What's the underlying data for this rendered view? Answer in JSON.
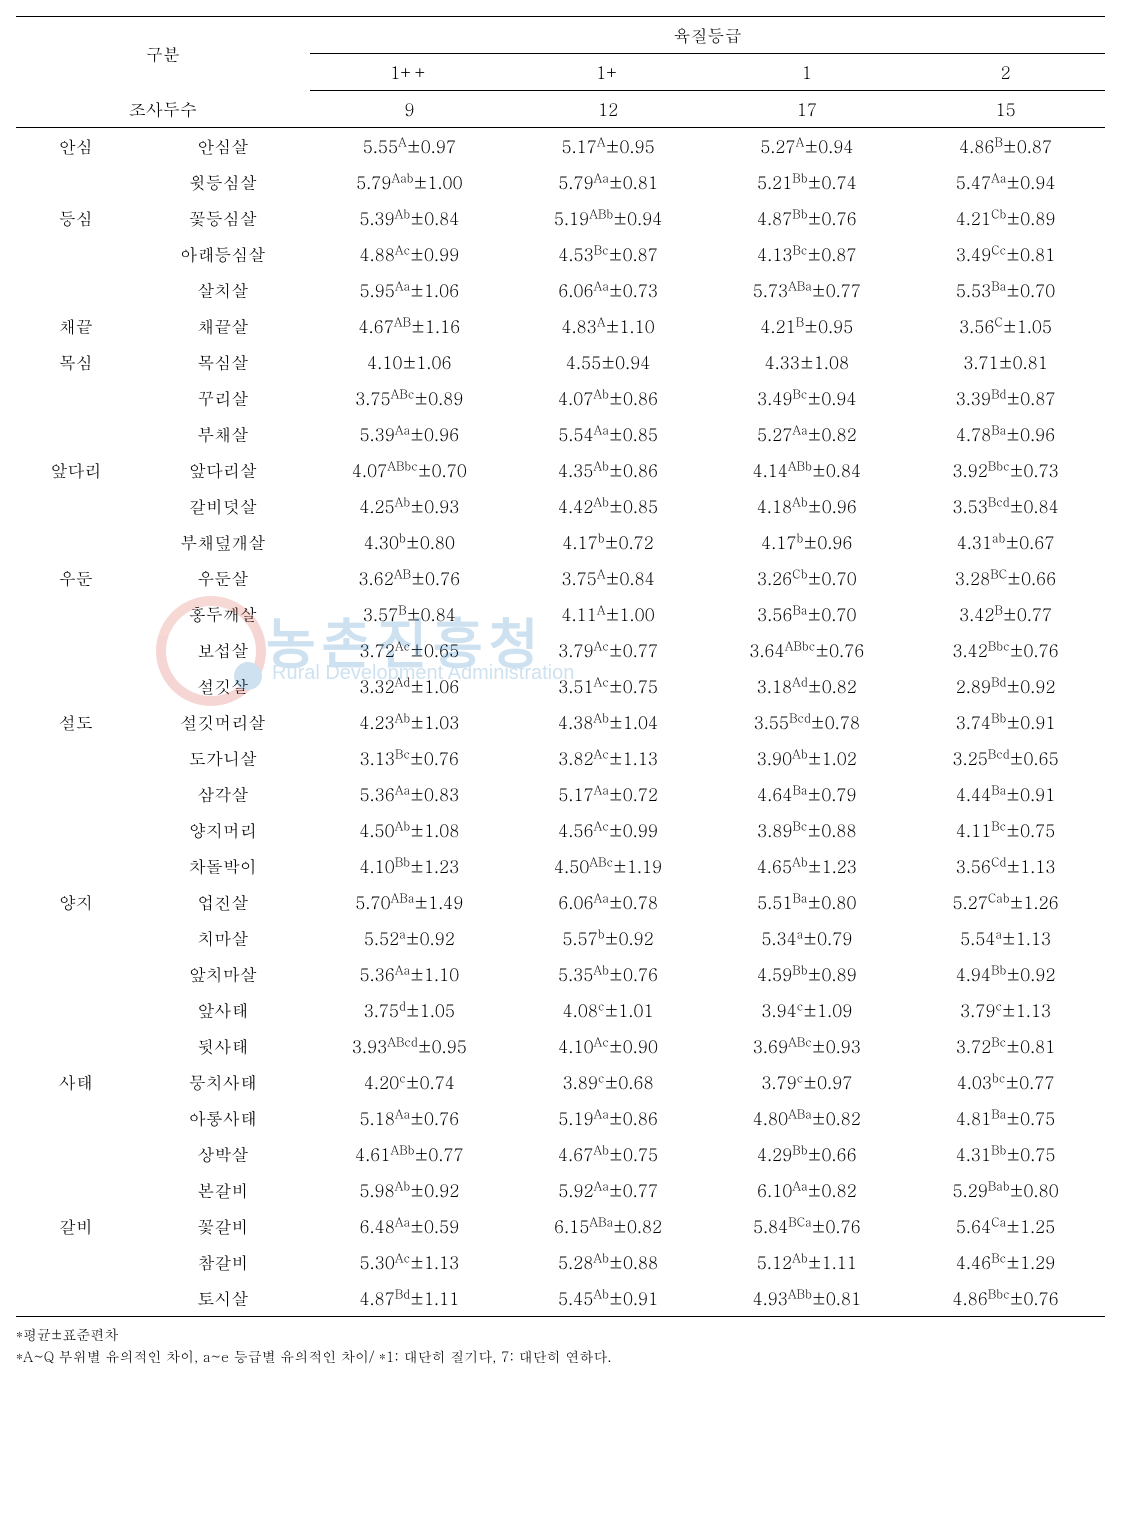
{
  "header": {
    "category_label": "구분",
    "grade_group_label": "육질등급",
    "grades": [
      "1++",
      "1+",
      "1",
      "2"
    ],
    "survey_label": "조사두수",
    "survey_counts": [
      "9",
      "12",
      "17",
      "15"
    ]
  },
  "table_style": {
    "font_size_pt": 13,
    "border_color": "#000000",
    "background_color": "#ffffff",
    "text_color": "#000000",
    "sup_font_scale": 0.7,
    "col_widths_pct": [
      11,
      16,
      18.25,
      18.25,
      18.25,
      18.25
    ]
  },
  "groups": [
    {
      "name": "안심",
      "rows": [
        {
          "sub": "안심살",
          "v": [
            {
              "m": "5.55",
              "s": "A",
              "sd": "0.97"
            },
            {
              "m": "5.17",
              "s": "A",
              "sd": "0.95"
            },
            {
              "m": "5.27",
              "s": "A",
              "sd": "0.94"
            },
            {
              "m": "4.86",
              "s": "B",
              "sd": "0.87"
            }
          ]
        }
      ]
    },
    {
      "name": "등심",
      "rows": [
        {
          "sub": "윗등심살",
          "v": [
            {
              "m": "5.79",
              "s": "Aab",
              "sd": "1.00"
            },
            {
              "m": "5.79",
              "s": "Aa",
              "sd": "0.81"
            },
            {
              "m": "5.21",
              "s": "Bb",
              "sd": "0.74"
            },
            {
              "m": "5.47",
              "s": "Aa",
              "sd": "0.94"
            }
          ]
        },
        {
          "sub": "꽃등심살",
          "v": [
            {
              "m": "5.39",
              "s": "Ab",
              "sd": "0.84"
            },
            {
              "m": "5.19",
              "s": "ABb",
              "sd": "0.94"
            },
            {
              "m": "4.87",
              "s": "Bb",
              "sd": "0.76"
            },
            {
              "m": "4.21",
              "s": "Cb",
              "sd": "0.89"
            }
          ]
        },
        {
          "sub": "아래등심살",
          "v": [
            {
              "m": "4.88",
              "s": "Ac",
              "sd": "0.99"
            },
            {
              "m": "4.53",
              "s": "Bc",
              "sd": "0.87"
            },
            {
              "m": "4.13",
              "s": "Bc",
              "sd": "0.87"
            },
            {
              "m": "3.49",
              "s": "Cc",
              "sd": "0.81"
            }
          ]
        },
        {
          "sub": "살치살",
          "v": [
            {
              "m": "5.95",
              "s": "Aa",
              "sd": "1.06"
            },
            {
              "m": "6.06",
              "s": "Aa",
              "sd": "0.73"
            },
            {
              "m": "5.73",
              "s": "ABa",
              "sd": "0.77"
            },
            {
              "m": "5.53",
              "s": "Ba",
              "sd": "0.70"
            }
          ]
        }
      ]
    },
    {
      "name": "채끝",
      "rows": [
        {
          "sub": "채끝살",
          "v": [
            {
              "m": "4.67",
              "s": "AB",
              "sd": "1.16"
            },
            {
              "m": "4.83",
              "s": "A",
              "sd": "1.10"
            },
            {
              "m": "4.21",
              "s": "B",
              "sd": "0.95"
            },
            {
              "m": "3.56",
              "s": "C",
              "sd": "1.05"
            }
          ]
        }
      ]
    },
    {
      "name": "목심",
      "rows": [
        {
          "sub": "목심살",
          "v": [
            {
              "m": "4.10",
              "s": "",
              "sd": "1.06"
            },
            {
              "m": "4.55",
              "s": "",
              "sd": "0.94"
            },
            {
              "m": "4.33",
              "s": "",
              "sd": "1.08"
            },
            {
              "m": "3.71",
              "s": "",
              "sd": "0.81"
            }
          ]
        }
      ]
    },
    {
      "name": "앞다리",
      "rows": [
        {
          "sub": "꾸리살",
          "v": [
            {
              "m": "3.75",
              "s": "ABc",
              "sd": "0.89"
            },
            {
              "m": "4.07",
              "s": "Ab",
              "sd": "0.86"
            },
            {
              "m": "3.49",
              "s": "Bc",
              "sd": "0.94"
            },
            {
              "m": "3.39",
              "s": "Bd",
              "sd": "0.87"
            }
          ]
        },
        {
          "sub": "부채살",
          "v": [
            {
              "m": "5.39",
              "s": "Aa",
              "sd": "0.96"
            },
            {
              "m": "5.54",
              "s": "Aa",
              "sd": "0.85"
            },
            {
              "m": "5.27",
              "s": "Aa",
              "sd": "0.82"
            },
            {
              "m": "4.78",
              "s": "Ba",
              "sd": "0.96"
            }
          ]
        },
        {
          "sub": "앞다리살",
          "v": [
            {
              "m": "4.07",
              "s": "ABbc",
              "sd": "0.70"
            },
            {
              "m": "4.35",
              "s": "Ab",
              "sd": "0.86"
            },
            {
              "m": "4.14",
              "s": "ABb",
              "sd": "0.84"
            },
            {
              "m": "3.92",
              "s": "Bbc",
              "sd": "0.73"
            }
          ]
        },
        {
          "sub": "갈비덧살",
          "v": [
            {
              "m": "4.25",
              "s": "Ab",
              "sd": "0.93"
            },
            {
              "m": "4.42",
              "s": "Ab",
              "sd": "0.85"
            },
            {
              "m": "4.18",
              "s": "Ab",
              "sd": "0.96"
            },
            {
              "m": "3.53",
              "s": "Bcd",
              "sd": "0.84"
            }
          ]
        },
        {
          "sub": "부채덮개살",
          "v": [
            {
              "m": "4.30",
              "s": "b",
              "sd": "0.80"
            },
            {
              "m": "4.17",
              "s": "b",
              "sd": "0.72"
            },
            {
              "m": "4.17",
              "s": "b",
              "sd": "0.96"
            },
            {
              "m": "4.31",
              "s": "ab",
              "sd": "0.67"
            }
          ]
        }
      ]
    },
    {
      "name": "우둔",
      "rows": [
        {
          "sub": "우둔살",
          "v": [
            {
              "m": "3.62",
              "s": "AB",
              "sd": "0.76"
            },
            {
              "m": "3.75",
              "s": "A",
              "sd": "0.84"
            },
            {
              "m": "3.26",
              "s": "Cb",
              "sd": "0.70"
            },
            {
              "m": "3.28",
              "s": "BC",
              "sd": "0.66"
            }
          ]
        },
        {
          "sub": "홍두깨살",
          "v": [
            {
              "m": "3.57",
              "s": "B",
              "sd": "0.84"
            },
            {
              "m": "4.11",
              "s": "A",
              "sd": "1.00"
            },
            {
              "m": "3.56",
              "s": "Ba",
              "sd": "0.70"
            },
            {
              "m": "3.42",
              "s": "B",
              "sd": "0.77"
            }
          ]
        }
      ]
    },
    {
      "name": "설도",
      "rows": [
        {
          "sub": "보섭살",
          "v": [
            {
              "m": "3.72",
              "s": "Ac",
              "sd": "0.65"
            },
            {
              "m": "3.79",
              "s": "Ac",
              "sd": "0.77"
            },
            {
              "m": "3.64",
              "s": "ABbc",
              "sd": "0.76"
            },
            {
              "m": "3.42",
              "s": "Bbc",
              "sd": "0.76"
            }
          ]
        },
        {
          "sub": "설깃살",
          "v": [
            {
              "m": "3.32",
              "s": "Ad",
              "sd": "1.06"
            },
            {
              "m": "3.51",
              "s": "Ac",
              "sd": "0.75"
            },
            {
              "m": "3.18",
              "s": "Ad",
              "sd": "0.82"
            },
            {
              "m": "2.89",
              "s": "Bd",
              "sd": "0.92"
            }
          ]
        },
        {
          "sub": "설깃머리살",
          "v": [
            {
              "m": "4.23",
              "s": "Ab",
              "sd": "1.03"
            },
            {
              "m": "4.38",
              "s": "Ab",
              "sd": "1.04"
            },
            {
              "m": "3.55",
              "s": "Bcd",
              "sd": "0.78"
            },
            {
              "m": "3.74",
              "s": "Bb",
              "sd": "0.91"
            }
          ]
        },
        {
          "sub": "도가니살",
          "v": [
            {
              "m": "3.13",
              "s": "Bc",
              "sd": "0.76"
            },
            {
              "m": "3.82",
              "s": "Ac",
              "sd": "1.13"
            },
            {
              "m": "3.90",
              "s": "Ab",
              "sd": "1.02"
            },
            {
              "m": "3.25",
              "s": "Bcd",
              "sd": "0.65"
            }
          ]
        },
        {
          "sub": "삼각살",
          "v": [
            {
              "m": "5.36",
              "s": "Aa",
              "sd": "0.83"
            },
            {
              "m": "5.17",
              "s": "Aa",
              "sd": "0.72"
            },
            {
              "m": "4.64",
              "s": "Ba",
              "sd": "0.79"
            },
            {
              "m": "4.44",
              "s": "Ba",
              "sd": "0.91"
            }
          ]
        }
      ]
    },
    {
      "name": "양지",
      "rows": [
        {
          "sub": "양지머리",
          "v": [
            {
              "m": "4.50",
              "s": "Ab",
              "sd": "1.08"
            },
            {
              "m": "4.56",
              "s": "Ac",
              "sd": "0.99"
            },
            {
              "m": "3.89",
              "s": "Bc",
              "sd": "0.88"
            },
            {
              "m": "4.11",
              "s": "Bc",
              "sd": "0.75"
            }
          ]
        },
        {
          "sub": "차돌박이",
          "v": [
            {
              "m": "4.10",
              "s": "Bb",
              "sd": "1.23"
            },
            {
              "m": "4.50",
              "s": "ABc",
              "sd": "1.19"
            },
            {
              "m": "4.65",
              "s": "Ab",
              "sd": "1.23"
            },
            {
              "m": "3.56",
              "s": "Cd",
              "sd": "1.13"
            }
          ]
        },
        {
          "sub": "업진살",
          "v": [
            {
              "m": "5.70",
              "s": "ABa",
              "sd": "1.49"
            },
            {
              "m": "6.06",
              "s": "Aa",
              "sd": "0.78"
            },
            {
              "m": "5.51",
              "s": "Ba",
              "sd": "0.80"
            },
            {
              "m": "5.27",
              "s": "Cab",
              "sd": "1.26"
            }
          ]
        },
        {
          "sub": "치마살",
          "v": [
            {
              "m": "5.52",
              "s": "a",
              "sd": "0.92"
            },
            {
              "m": "5.57",
              "s": "b",
              "sd": "0.92"
            },
            {
              "m": "5.34",
              "s": "a",
              "sd": "0.79"
            },
            {
              "m": "5.54",
              "s": "a",
              "sd": "1.13"
            }
          ]
        },
        {
          "sub": "앞치마살",
          "v": [
            {
              "m": "5.36",
              "s": "Aa",
              "sd": "1.10"
            },
            {
              "m": "5.35",
              "s": "Ab",
              "sd": "0.76"
            },
            {
              "m": "4.59",
              "s": "Bb",
              "sd": "0.89"
            },
            {
              "m": "4.94",
              "s": "Bb",
              "sd": "0.92"
            }
          ]
        }
      ]
    },
    {
      "name": "사태",
      "rows": [
        {
          "sub": "앞사태",
          "v": [
            {
              "m": "3.75",
              "s": "d",
              "sd": "1.05"
            },
            {
              "m": "4.08",
              "s": "c",
              "sd": "1.01"
            },
            {
              "m": "3.94",
              "s": "c",
              "sd": "1.09"
            },
            {
              "m": "3.79",
              "s": "c",
              "sd": "1.13"
            }
          ]
        },
        {
          "sub": "뒷사태",
          "v": [
            {
              "m": "3.93",
              "s": "ABcd",
              "sd": "0.95"
            },
            {
              "m": "4.10",
              "s": "Ac",
              "sd": "0.90"
            },
            {
              "m": "3.69",
              "s": "ABc",
              "sd": "0.93"
            },
            {
              "m": "3.72",
              "s": "Bc",
              "sd": "0.81"
            }
          ]
        },
        {
          "sub": "뭉치사태",
          "v": [
            {
              "m": "4.20",
              "s": "c",
              "sd": "0.74"
            },
            {
              "m": "3.89",
              "s": "c",
              "sd": "0.68"
            },
            {
              "m": "3.79",
              "s": "c",
              "sd": "0.97"
            },
            {
              "m": "4.03",
              "s": "bc",
              "sd": "0.77"
            }
          ]
        },
        {
          "sub": "아롱사태",
          "v": [
            {
              "m": "5.18",
              "s": "Aa",
              "sd": "0.76"
            },
            {
              "m": "5.19",
              "s": "Aa",
              "sd": "0.86"
            },
            {
              "m": "4.80",
              "s": "ABa",
              "sd": "0.82"
            },
            {
              "m": "4.81",
              "s": "Ba",
              "sd": "0.75"
            }
          ]
        },
        {
          "sub": "상박살",
          "v": [
            {
              "m": "4.61",
              "s": "ABb",
              "sd": "0.77"
            },
            {
              "m": "4.67",
              "s": "Ab",
              "sd": "0.75"
            },
            {
              "m": "4.29",
              "s": "Bb",
              "sd": "0.66"
            },
            {
              "m": "4.31",
              "s": "Bb",
              "sd": "0.75"
            }
          ]
        }
      ]
    },
    {
      "name": "갈비",
      "rows": [
        {
          "sub": "본갈비",
          "v": [
            {
              "m": "5.98",
              "s": "Ab",
              "sd": "0.92"
            },
            {
              "m": "5.92",
              "s": "Aa",
              "sd": "0.77"
            },
            {
              "m": "6.10",
              "s": "Aa",
              "sd": "0.82"
            },
            {
              "m": "5.29",
              "s": "Bab",
              "sd": "0.80"
            }
          ]
        },
        {
          "sub": "꽃갈비",
          "v": [
            {
              "m": "6.48",
              "s": "Aa",
              "sd": "0.59"
            },
            {
              "m": "6.15",
              "s": "ABa",
              "sd": "0.82"
            },
            {
              "m": "5.84",
              "s": "BCa",
              "sd": "0.76"
            },
            {
              "m": "5.64",
              "s": "Ca",
              "sd": "1.25"
            }
          ]
        },
        {
          "sub": "참갈비",
          "v": [
            {
              "m": "5.30",
              "s": "Ac",
              "sd": "1.13"
            },
            {
              "m": "5.28",
              "s": "Ab",
              "sd": "0.88"
            },
            {
              "m": "5.12",
              "s": "Ab",
              "sd": "1.11"
            },
            {
              "m": "4.46",
              "s": "Bc",
              "sd": "1.29"
            }
          ]
        },
        {
          "sub": "토시살",
          "v": [
            {
              "m": "4.87",
              "s": "Bd",
              "sd": "1.11"
            },
            {
              "m": "5.45",
              "s": "Ab",
              "sd": "0.91"
            },
            {
              "m": "4.93",
              "s": "ABb",
              "sd": "0.81"
            },
            {
              "m": "4.86",
              "s": "Bbc",
              "sd": "0.76"
            }
          ]
        }
      ]
    }
  ],
  "footnotes": [
    "*평균±표준편차",
    "*A~Q 부위별 유의적인 차이, a~e 등급별 유의적인 차이/ *1: 대단히 질기다, 7: 대단히 연하다."
  ],
  "watermark": {
    "text_main": "농촌진흥청",
    "text_sub": "Rural Development Administration",
    "circle_color": "#d43a2f",
    "dot_color": "#0b6fb8",
    "text_color": "#0b6fb8",
    "opacity": 0.2
  }
}
